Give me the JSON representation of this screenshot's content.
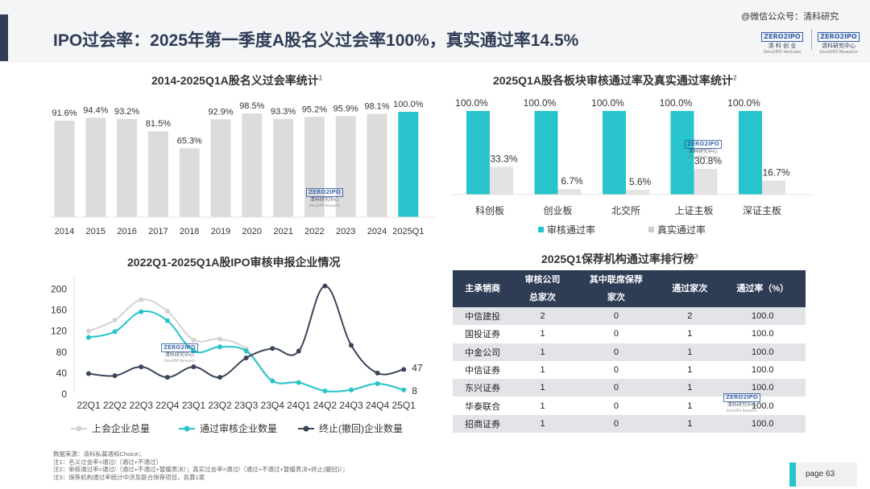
{
  "header": {
    "title": "IPO过会率：2025年第一季度A股名义过会率100%，真实通过率14.5%",
    "watermark": "@微信公众号：清科研究"
  },
  "logos": [
    {
      "badge": "ZERO2IPO",
      "cn": "清 科 创 业",
      "en": "Zero2IPO Ventures"
    },
    {
      "badge": "ZERO2IPO",
      "cn": "清科研究中心",
      "en": "Zero2IPO Research"
    }
  ],
  "chart_watermark": {
    "badge": "ZERO2IPO",
    "cn": "清科研究中心",
    "en": "Zero2IPO Research"
  },
  "colors": {
    "navy": "#2f3c55",
    "teal": "#27c4cc",
    "grey_bar": "#d9d9d9",
    "light_grey_line": "#d3d3d3",
    "dark_line": "#3b4558"
  },
  "chart_data": [
    {
      "id": "nominal-pass-rate",
      "type": "bar",
      "title": "2014-2025Q1A股名义过会率统计",
      "title_note": "1",
      "categories": [
        "2014",
        "2015",
        "2016",
        "2017",
        "2018",
        "2019",
        "2020",
        "2021",
        "2022",
        "2023",
        "2024",
        "2025Q1"
      ],
      "values": [
        91.6,
        94.4,
        93.2,
        81.5,
        65.3,
        92.9,
        98.5,
        93.3,
        95.2,
        95.9,
        98.1,
        100.0
      ],
      "labels": [
        "91.6%",
        "94.4%",
        "93.2%",
        "81.5%",
        "65.3%",
        "92.9%",
        "98.5%",
        "93.3%",
        "95.2%",
        "95.9%",
        "98.1%",
        "100.0%"
      ],
      "highlight_index": 11,
      "ylim": [
        0,
        100
      ]
    },
    {
      "id": "board-pass-rate",
      "type": "bar",
      "title": "2025Q1A股各板块审核通过率及真实通过率统计",
      "title_note": "2",
      "categories": [
        "科创板",
        "创业板",
        "北交所",
        "上证主板",
        "深证主板"
      ],
      "series": [
        {
          "name": "审核通过率",
          "values": [
            100.0,
            100.0,
            100.0,
            100.0,
            100.0
          ],
          "labels": [
            "100.0%",
            "100.0%",
            "100.0%",
            "100.0%",
            "100.0%"
          ]
        },
        {
          "name": "真实通过率",
          "values": [
            33.3,
            6.7,
            5.6,
            30.8,
            16.7
          ],
          "labels": [
            "33.3%",
            "6.7%",
            "5.6%",
            "30.8%",
            "16.7%"
          ]
        }
      ],
      "ylim": [
        0,
        100
      ]
    },
    {
      "id": "ipo-review-applications",
      "type": "line",
      "title": "2022Q1-2025Q1A股IPO审核申报企业情况",
      "categories": [
        "22Q1",
        "22Q2",
        "22Q3",
        "22Q4",
        "23Q1",
        "23Q2",
        "23Q3",
        "23Q4",
        "24Q1",
        "24Q2",
        "24Q3",
        "24Q4",
        "25Q1"
      ],
      "yticks": [
        0,
        40,
        80,
        120,
        160,
        200
      ],
      "ylim": [
        0,
        210
      ],
      "series": [
        {
          "name": "上会企业总量",
          "values": [
            120,
            141,
            180,
            158,
            103,
            105,
            86,
            26,
            22,
            6,
            8,
            20,
            8
          ]
        },
        {
          "name": "通过审核企业数量",
          "values": [
            108,
            119,
            157,
            140,
            82,
            90,
            82,
            25,
            22,
            6,
            8,
            20,
            8
          ]
        },
        {
          "name": "终止(撤回)企业数量",
          "values": [
            39,
            35,
            52,
            32,
            52,
            32,
            69,
            87,
            82,
            206,
            93,
            40,
            47
          ]
        }
      ],
      "end_labels": [
        "8",
        "47"
      ]
    }
  ],
  "ranking_table": {
    "title": "2025Q1保荐机构通过率排行榜",
    "title_note": "3",
    "headers": [
      "主承销商",
      "审核公司总家次",
      "其中联席保荐家次",
      "通过家次",
      "通过率（%）"
    ],
    "header_lines": [
      [
        "主承销商"
      ],
      [
        "审核公司",
        "总家次"
      ],
      [
        "其中联席保荐",
        "家次"
      ],
      [
        "通过家次"
      ],
      [
        "通过率（%）"
      ]
    ],
    "rows": [
      [
        "中信建投",
        "2",
        "0",
        "2",
        "100.0"
      ],
      [
        "国投证券",
        "1",
        "0",
        "1",
        "100.0"
      ],
      [
        "中金公司",
        "1",
        "0",
        "1",
        "100.0"
      ],
      [
        "中信证券",
        "1",
        "0",
        "1",
        "100.0"
      ],
      [
        "东兴证券",
        "1",
        "0",
        "1",
        "100.0"
      ],
      [
        "华泰联合",
        "1",
        "0",
        "1",
        "100.0"
      ],
      [
        "招商证券",
        "1",
        "0",
        "1",
        "100.0"
      ]
    ]
  },
  "notes": [
    "数据来源：清科私募通和Choice；",
    "注1：名义过会率=通过/（通过+不通过）",
    "注2：审核通过率=通过/（通过+不通过+暂缓表决）；真实过会率=通过/（通过+不通过+暂缓表决+终止(撤回)）；",
    "注3：保荐机构通过率统计中涉及联合保荐项目，各算1家"
  ],
  "footer": {
    "page": "page  63"
  }
}
